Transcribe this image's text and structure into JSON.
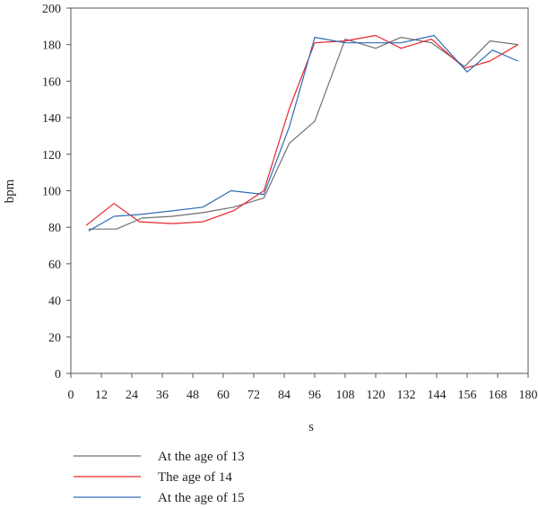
{
  "chart_data": {
    "type": "line",
    "xlabel": "s",
    "ylabel": "bpm",
    "xlim": [
      0,
      180
    ],
    "ylim": [
      0,
      200
    ],
    "xticks": [
      0,
      12,
      24,
      36,
      48,
      60,
      72,
      84,
      96,
      108,
      120,
      132,
      144,
      156,
      168,
      180
    ],
    "yticks": [
      0,
      20,
      40,
      60,
      80,
      100,
      120,
      140,
      160,
      180,
      200
    ],
    "grid": false,
    "legend_position": "bottom-left",
    "series": [
      {
        "name": "At the age of 13",
        "color": "#707070",
        "x": [
          7,
          18,
          28,
          40,
          52,
          64,
          76,
          86,
          96,
          108,
          120,
          130,
          142,
          155,
          165,
          176
        ],
        "y": [
          79,
          79,
          85,
          86,
          88,
          91,
          96,
          126,
          138,
          183,
          178,
          184,
          181,
          168,
          182,
          180
        ]
      },
      {
        "name": "The age of 14",
        "color": "#e8262b",
        "x": [
          6,
          17,
          27,
          40,
          52,
          64,
          76,
          86,
          96,
          108,
          120,
          130,
          142,
          155,
          165,
          176
        ],
        "y": [
          81,
          93,
          83,
          82,
          83,
          89,
          100,
          145,
          181,
          182,
          185,
          178,
          183,
          167,
          171,
          180
        ]
      },
      {
        "name": "At the age of 15",
        "color": "#2e6db4",
        "x": [
          7,
          17,
          27,
          40,
          52,
          63,
          76,
          86,
          96,
          108,
          120,
          130,
          143,
          156,
          166,
          176
        ],
        "y": [
          78,
          86,
          87,
          89,
          91,
          100,
          98,
          135,
          184,
          181,
          181,
          181,
          185,
          165,
          177,
          171
        ]
      }
    ]
  }
}
